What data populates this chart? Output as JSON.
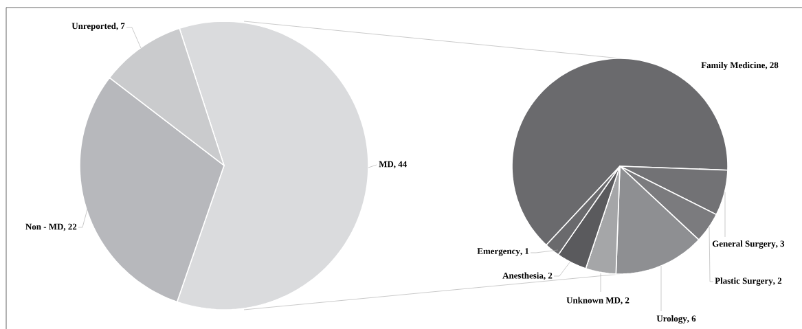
{
  "chart_data": [
    {
      "type": "pie",
      "categories": [
        "MD",
        "Non - MD",
        "Unreported"
      ],
      "values": [
        44,
        22,
        7
      ],
      "colors": [
        "#dadbdd",
        "#b7b8bc",
        "#cacbcd"
      ],
      "value_labels": [
        ", 44",
        ", 22",
        ", 7"
      ]
    },
    {
      "type": "pie",
      "categories": [
        "Family Medicine",
        "General Surgery",
        "Plastic Surgery",
        "Urology",
        "Unknown MD",
        "Anesthesia",
        "Emergency"
      ],
      "values": [
        28,
        3,
        2,
        6,
        2,
        2,
        1
      ],
      "colors": [
        "#6a6a6d",
        "#727275",
        "#7b7b7e",
        "#8e8f92",
        "#a5a6a8",
        "#5a5a5d",
        "#6a6a6d"
      ],
      "value_labels": [
        ", 28",
        ", 3",
        ", 2",
        ", 6",
        ", 2",
        ", 2",
        ", 1"
      ]
    }
  ]
}
